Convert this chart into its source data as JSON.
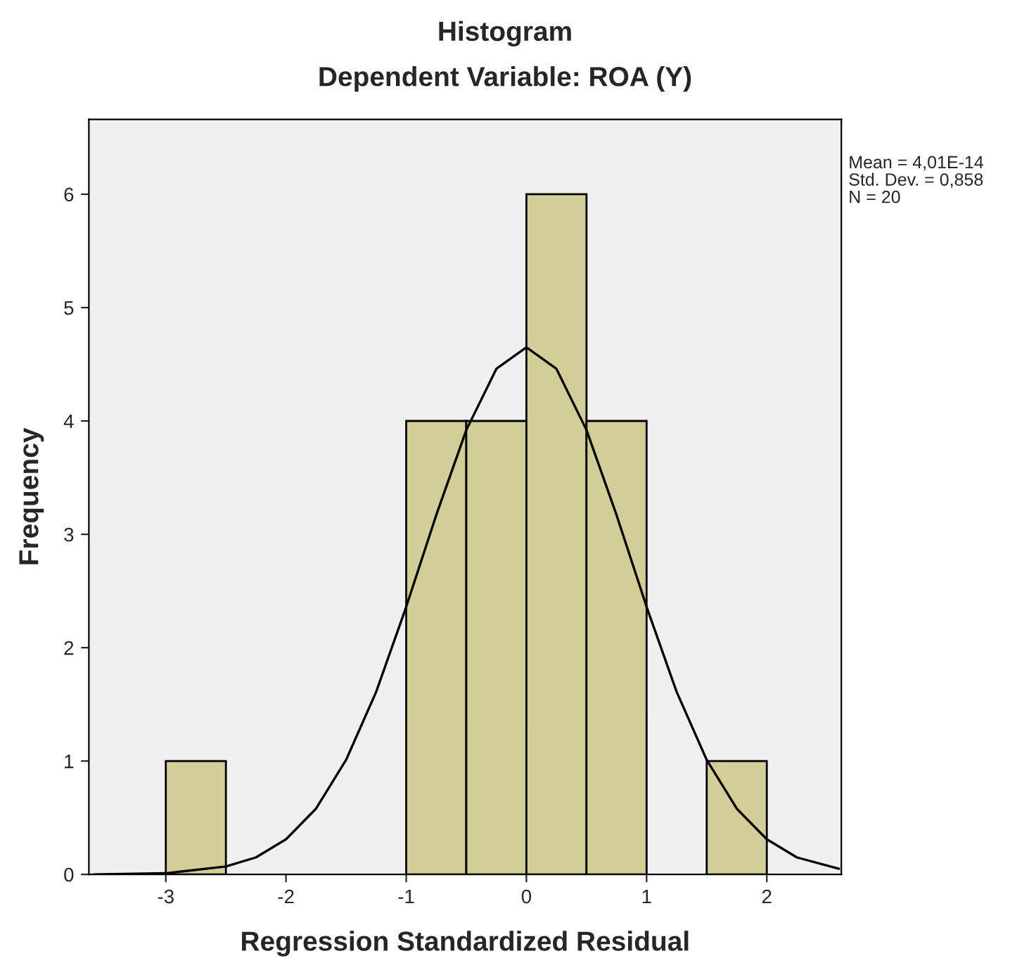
{
  "chart_data": {
    "type": "histogram",
    "title": "Histogram",
    "subtitle": "Dependent Variable: ROA (Y)",
    "xlabel": "Regression Standardized Residual",
    "ylabel": "Frequency",
    "bins": [
      -3,
      -2.5,
      -2,
      -1.5,
      -1,
      -0.5,
      0,
      0.5,
      1,
      1.5,
      2
    ],
    "values": [
      1,
      0,
      0,
      0,
      4,
      4,
      6,
      4,
      0,
      1
    ],
    "color": "#d3ce98",
    "series": [
      {
        "type": "line",
        "color": "#000000",
        "x": [
          -3.6,
          -3.0,
          -2.5,
          -2.25,
          -2.0,
          -1.75,
          -1.5,
          -1.25,
          -1.0,
          -0.75,
          -0.5,
          -0.25,
          0,
          0.25,
          0.5,
          0.75,
          1.0,
          1.25,
          1.5,
          1.75,
          2.0,
          2.25,
          2.6
        ],
        "values": [
          0.0,
          0.01,
          0.07,
          0.15,
          0.31,
          0.58,
          1.01,
          1.61,
          2.36,
          3.17,
          3.92,
          4.46,
          4.65,
          4.46,
          3.92,
          3.17,
          2.36,
          1.61,
          1.01,
          0.58,
          0.31,
          0.15,
          0.05
        ]
      }
    ],
    "xlim": [
      -3.64,
      2.62
    ],
    "ylim": [
      0,
      6.66
    ],
    "xticks": [
      -3,
      -2,
      -1,
      0,
      1,
      2
    ],
    "yticks": [
      0,
      1,
      2,
      3,
      4,
      5,
      6
    ],
    "annotations": [
      "Mean = 4,01E-14",
      "Std. Dev. = 0,858",
      "N = 20"
    ],
    "grid": false,
    "legend": false
  }
}
